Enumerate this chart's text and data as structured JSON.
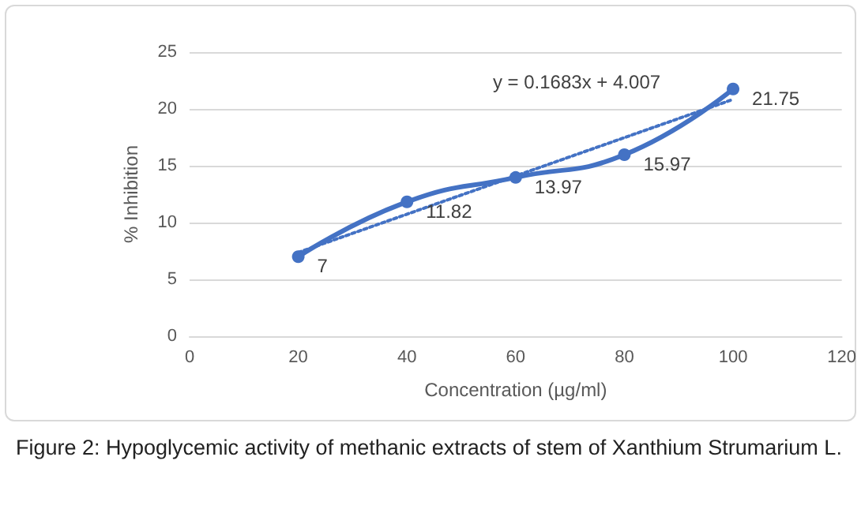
{
  "chart_data": {
    "type": "line",
    "xlabel": "Concentration (µg/ml)",
    "ylabel": "% Inhibition",
    "xlim": [
      0,
      120
    ],
    "xticks": [
      0,
      20,
      40,
      60,
      80,
      100,
      120
    ],
    "ylim": [
      0,
      25
    ],
    "yticks": [
      0,
      5,
      10,
      15,
      20,
      25
    ],
    "grid": "y",
    "series": [
      {
        "color": "#4472c4",
        "x": [
          20,
          40,
          60,
          80,
          100
        ],
        "values": [
          7,
          11.82,
          13.97,
          15.97,
          21.75
        ],
        "value_labels": [
          "7",
          "11.82",
          "13.97",
          "15.97",
          "21.75"
        ],
        "marker": "circle",
        "line_style": "solid"
      },
      {
        "color": "#4472c4",
        "x": [
          20,
          100
        ],
        "values": [
          7.37,
          20.84
        ],
        "marker": "none",
        "line_style": "dotted"
      }
    ],
    "annotations": [
      "y = 0.1683x + 4.007",
      "Figure 2: Hypoglycemic activity of methanic extracts of stem of Xanthium Strumarium L."
    ]
  }
}
